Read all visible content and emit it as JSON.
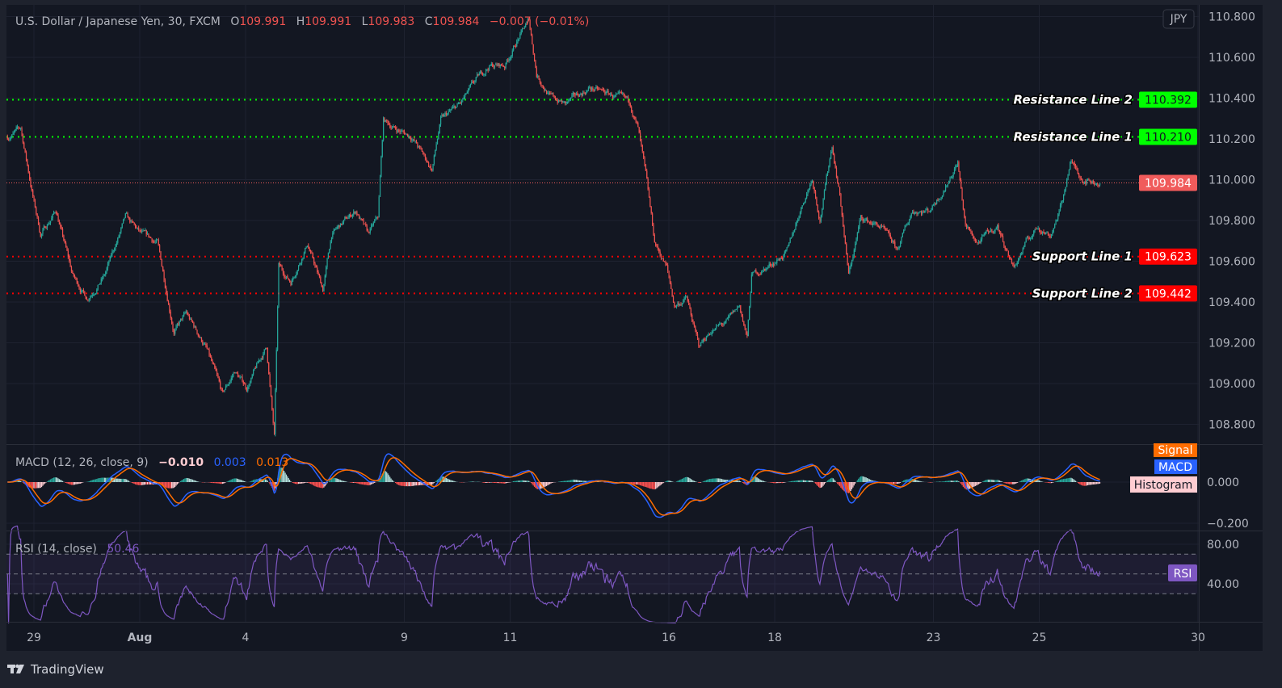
{
  "header": {
    "symbol": "U.S. Dollar / Japanese Yen, 30, FXCM",
    "o_label": "O",
    "o_value": "109.991",
    "h_label": "H",
    "h_value": "109.991",
    "l_label": "L",
    "l_value": "109.983",
    "c_label": "C",
    "c_value": "109.984",
    "change": "−0.007 (−0.01%)"
  },
  "currency_button": "JPY",
  "levels": [
    {
      "name": "Resistance Line 2",
      "price": 110.392,
      "label": "110.392",
      "color": "#00ff00"
    },
    {
      "name": "Resistance Line 1",
      "price": 110.21,
      "label": "110.210",
      "color": "#00ff00"
    },
    {
      "name": "Support Line 1",
      "price": 109.623,
      "label": "109.623",
      "color": "#ff0000"
    },
    {
      "name": "Support Line 2",
      "price": 109.442,
      "label": "109.442",
      "color": "#ff0000"
    }
  ],
  "last_price": {
    "price": 109.984,
    "label": "109.984",
    "color": "#f05b5b"
  },
  "macd": {
    "title": "MACD (12, 26, close, 9)",
    "histogram_value": "−0.010",
    "macd_value": "0.003",
    "signal_value": "0.013",
    "legend": {
      "signal": "Signal",
      "macd": "MACD",
      "histogram": "Histogram"
    },
    "ticks": [
      {
        "value": 0,
        "label": "0.000"
      },
      {
        "value": -0.2,
        "label": "−0.200"
      }
    ],
    "colors": {
      "macd": "#2962ff",
      "signal": "#ff6d00",
      "hist_up": "#26a69a",
      "hist_up_fall": "#b2dfdb",
      "hist_down": "#ff5252",
      "hist_down_rise": "#ffcdd2"
    }
  },
  "rsi": {
    "title": "RSI (14, close)",
    "value": "50.46",
    "legend": "RSI",
    "ticks": [
      {
        "value": 80,
        "label": "80.00"
      },
      {
        "value": 40,
        "label": "40.00"
      }
    ],
    "bands": [
      70,
      50,
      30
    ],
    "color": "#7e57c2"
  },
  "brand": "TradingView",
  "colors": {
    "up": "#26a69a",
    "down": "#ef5350",
    "background": "#131722"
  },
  "chart_data": {
    "type": "candlestick",
    "title": "U.S. Dollar / Japanese Yen, 30, FXCM",
    "interval": "30",
    "ylim": [
      108.7,
      110.82
    ],
    "grid": true,
    "y_ticks": [
      {
        "value": 110.8,
        "label": "110.800"
      },
      {
        "value": 110.6,
        "label": "110.600"
      },
      {
        "value": 110.4,
        "label": "110.400"
      },
      {
        "value": 110.2,
        "label": "110.200"
      },
      {
        "value": 110.0,
        "label": "110.000"
      },
      {
        "value": 109.8,
        "label": "109.800"
      },
      {
        "value": 109.6,
        "label": "109.600"
      },
      {
        "value": 109.4,
        "label": "109.400"
      },
      {
        "value": 109.2,
        "label": "109.200"
      },
      {
        "value": 109.0,
        "label": "109.000"
      },
      {
        "value": 108.8,
        "label": "108.800"
      }
    ],
    "x_ticks": [
      {
        "date": "Jul 29",
        "label": "29"
      },
      {
        "date": "Aug 2",
        "label": "Aug"
      },
      {
        "date": "Aug 4",
        "label": "4"
      },
      {
        "date": "Aug 9",
        "label": "9"
      },
      {
        "date": "Aug 11",
        "label": "11"
      },
      {
        "date": "Aug 16",
        "label": "16"
      },
      {
        "date": "Aug 18",
        "label": "18"
      },
      {
        "date": "Aug 23",
        "label": "23"
      },
      {
        "date": "Aug 25",
        "label": "25"
      },
      {
        "date": "Aug 30",
        "label": "30"
      }
    ],
    "price_path": [
      [
        "Jul 28 12:00",
        110.21
      ],
      [
        "Jul 28 18:00",
        110.25
      ],
      [
        "Jul 29 00:00",
        109.89
      ],
      [
        "Jul 29 03:00",
        109.73
      ],
      [
        "Jul 29 10:00",
        109.85
      ],
      [
        "Jul 29 17:30",
        109.53
      ],
      [
        "Jul 30 00:00",
        109.42
      ],
      [
        "Jul 30 08:00",
        109.53
      ],
      [
        "Jul 30 17:30",
        109.81
      ],
      [
        "Aug 2 00:30",
        109.73
      ],
      [
        "Aug 2 08:00",
        109.69
      ],
      [
        "Aug 2 15:30",
        109.26
      ],
      [
        "Aug 2 21:00",
        109.34
      ],
      [
        "Aug 3 06:00",
        109.18
      ],
      [
        "Aug 3 13:30",
        108.94
      ],
      [
        "Aug 3 19:00",
        109.06
      ],
      [
        "Aug 4 00:30",
        108.98
      ],
      [
        "Aug 4 09:30",
        109.18
      ],
      [
        "Aug 4 13:00",
        108.74
      ],
      [
        "Aug 4 15:00",
        109.57
      ],
      [
        "Aug 4 20:30",
        109.5
      ],
      [
        "Aug 5 04:00",
        109.69
      ],
      [
        "Aug 5 11:00",
        109.46
      ],
      [
        "Aug 5 15:00",
        109.73
      ],
      [
        "Aug 6 02:00",
        109.85
      ],
      [
        "Aug 6 07:30",
        109.73
      ],
      [
        "Aug 6 12:00",
        109.81
      ],
      [
        "Aug 6 14:30",
        110.29
      ],
      [
        "Aug 6 20:00",
        110.25
      ],
      [
        "Aug 9 03:30",
        110.21
      ],
      [
        "Aug 9 12:30",
        110.05
      ],
      [
        "Aug 9 16:30",
        110.29
      ],
      [
        "Aug 10 01:30",
        110.37
      ],
      [
        "Aug 10 09:00",
        110.49
      ],
      [
        "Aug 10 14:30",
        110.56
      ],
      [
        "Aug 10 21:30",
        110.56
      ],
      [
        "Aug 11 03:00",
        110.68
      ],
      [
        "Aug 11 08:30",
        110.78
      ],
      [
        "Aug 11 12:00",
        110.52
      ],
      [
        "Aug 11 18:00",
        110.41
      ],
      [
        "Aug 12 01:00",
        110.37
      ],
      [
        "Aug 12 12:00",
        110.45
      ],
      [
        "Aug 12 23:00",
        110.41
      ],
      [
        "Aug 13 06:30",
        110.37
      ],
      [
        "Aug 13 10:00",
        110.25
      ],
      [
        "Aug 13 13:30",
        110.01
      ],
      [
        "Aug 13 17:30",
        109.69
      ],
      [
        "Aug 13 23:00",
        109.57
      ],
      [
        "Aug 16 02:30",
        109.38
      ],
      [
        "Aug 16 08:00",
        109.42
      ],
      [
        "Aug 16 13:30",
        109.18
      ],
      [
        "Aug 16 19:00",
        109.26
      ],
      [
        "Aug 17 02:30",
        109.3
      ],
      [
        "Aug 17 08:00",
        109.38
      ],
      [
        "Aug 17 11:30",
        109.22
      ],
      [
        "Aug 17 13:30",
        109.53
      ],
      [
        "Aug 17 20:30",
        109.57
      ],
      [
        "Aug 18 06:00",
        109.65
      ],
      [
        "Aug 18 11:30",
        109.85
      ],
      [
        "Aug 18 17:00",
        110.01
      ],
      [
        "Aug 18 20:30",
        109.81
      ],
      [
        "Aug 19 02:00",
        110.17
      ],
      [
        "Aug 19 05:30",
        109.93
      ],
      [
        "Aug 19 09:30",
        109.53
      ],
      [
        "Aug 19 15:00",
        109.81
      ],
      [
        "Aug 20 00:00",
        109.77
      ],
      [
        "Aug 20 07:30",
        109.65
      ],
      [
        "Aug 20 14:30",
        109.85
      ],
      [
        "Aug 20 22:00",
        109.85
      ],
      [
        "Aug 23 05:30",
        109.97
      ],
      [
        "Aug 23 11:00",
        110.09
      ],
      [
        "Aug 23 14:30",
        109.77
      ],
      [
        "Aug 23 20:00",
        109.69
      ],
      [
        "Aug 24 05:00",
        109.77
      ],
      [
        "Aug 24 12:30",
        109.57
      ],
      [
        "Aug 24 18:00",
        109.69
      ],
      [
        "Aug 24 23:30",
        109.77
      ],
      [
        "Aug 25 05:00",
        109.73
      ],
      [
        "Aug 25 10:30",
        109.89
      ],
      [
        "Aug 25 14:00",
        110.09
      ],
      [
        "Aug 25 19:30",
        110.01
      ],
      [
        "Aug 26 03:30",
        109.984
      ]
    ]
  }
}
